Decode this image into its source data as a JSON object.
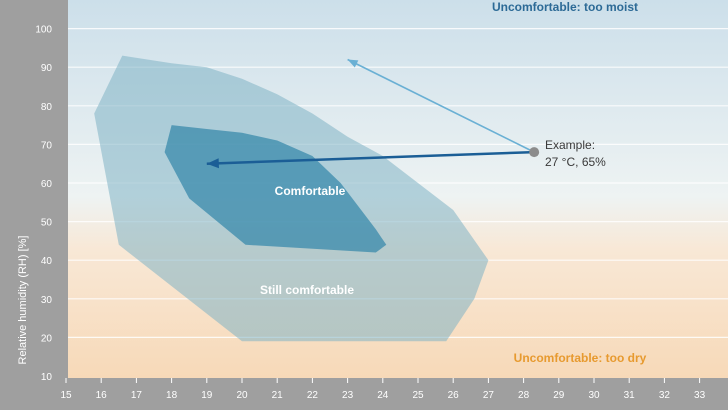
{
  "chart_data": {
    "type": "area",
    "ylabel": "Relative humidity (RH) [%]",
    "xlim": [
      15,
      33
    ],
    "ylim": [
      10,
      100
    ],
    "x_ticks": [
      15,
      16,
      17,
      18,
      19,
      20,
      21,
      22,
      23,
      24,
      25,
      26,
      27,
      28,
      29,
      30,
      31,
      32,
      33
    ],
    "y_ticks": [
      10,
      20,
      30,
      40,
      50,
      60,
      70,
      80,
      90,
      100
    ],
    "grid": true,
    "zones": [
      {
        "name": "Uncomfortable: too moist",
        "color": "#2c6a96"
      },
      {
        "name": "Uncomfortable: too dry",
        "color": "#e79a2f"
      }
    ],
    "regions": [
      {
        "name": "Still comfortable",
        "color": "#7fb2c4",
        "points": [
          [
            16.6,
            93
          ],
          [
            18,
            91
          ],
          [
            19,
            90
          ],
          [
            20,
            87
          ],
          [
            21,
            83
          ],
          [
            22,
            78
          ],
          [
            23,
            72
          ],
          [
            24,
            67
          ],
          [
            25,
            60
          ],
          [
            26,
            53
          ],
          [
            27,
            40
          ],
          [
            26.6,
            30
          ],
          [
            25.8,
            19
          ],
          [
            20,
            19
          ],
          [
            16.5,
            44
          ],
          [
            15.8,
            78
          ]
        ]
      },
      {
        "name": "Comfortable",
        "color": "#3a8aab",
        "points": [
          [
            18,
            75
          ],
          [
            19,
            74
          ],
          [
            20,
            73
          ],
          [
            21,
            71
          ],
          [
            22,
            67
          ],
          [
            22.8,
            60
          ],
          [
            23.8,
            48
          ],
          [
            24.1,
            44
          ],
          [
            23.8,
            42
          ],
          [
            20.1,
            44
          ],
          [
            18.5,
            56
          ],
          [
            17.8,
            68
          ]
        ]
      }
    ],
    "example": {
      "label_line1": "Example:",
      "label_line2": "27 °C, 65%",
      "point": [
        28.3,
        68
      ],
      "arrows": [
        {
          "to": [
            19,
            65
          ],
          "color": "#1b5e96"
        },
        {
          "to": [
            23,
            92
          ],
          "color": "#6ab0d4"
        }
      ]
    }
  }
}
